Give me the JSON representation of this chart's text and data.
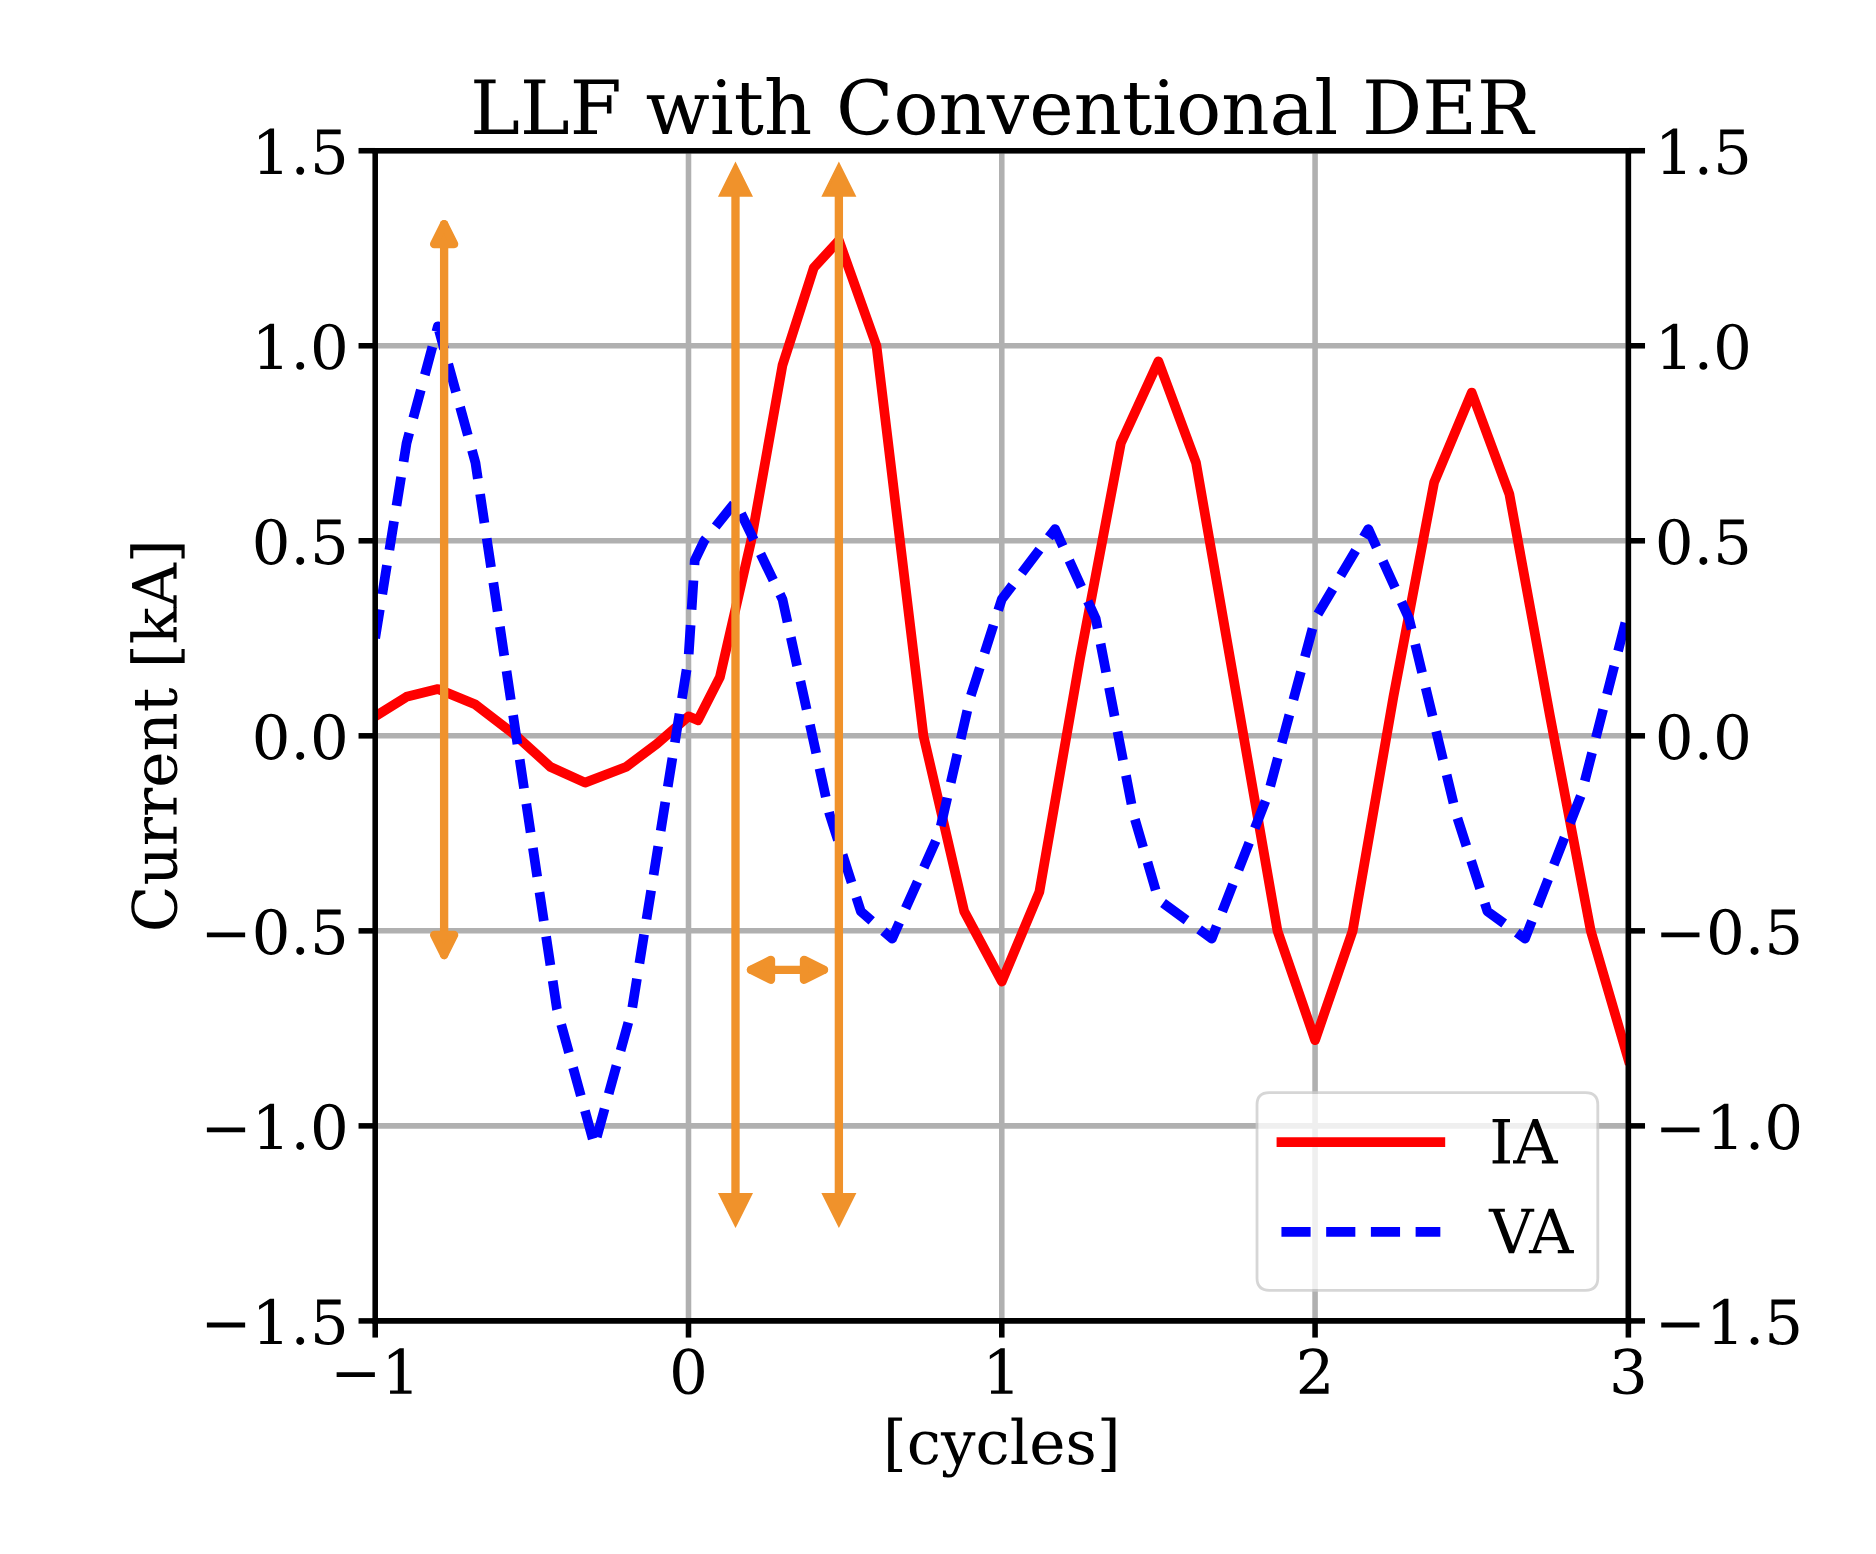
{
  "chart_data": {
    "type": "line",
    "title": "LLF with Conventional DER",
    "xlabel": "[cycles]",
    "ylabel": "Current [kA]",
    "xlim": [
      -1,
      3
    ],
    "xticks": [
      {
        "value": -1,
        "label": "−1"
      },
      0,
      1,
      2,
      3
    ],
    "ylim": [
      -1.5,
      1.5
    ],
    "yticks": [
      {
        "value": -1.5,
        "label": "−1.5"
      },
      {
        "value": -1.0,
        "label": "−1.0"
      },
      {
        "value": -0.5,
        "label": "−0.5"
      },
      {
        "value": 0.0,
        "label": "0.0"
      },
      {
        "value": 0.5,
        "label": "0.5"
      },
      {
        "value": 1.0,
        "label": "1.0"
      },
      {
        "value": 1.5,
        "label": "1.5"
      }
    ],
    "y2lim": [
      -1.5,
      1.5
    ],
    "y2ticks": [
      {
        "value": -1.5,
        "label": "−1.5"
      },
      {
        "value": -1.0,
        "label": "−1.0"
      },
      {
        "value": -0.5,
        "label": "−0.5"
      },
      {
        "value": 0.0,
        "label": "0.0"
      },
      {
        "value": 0.5,
        "label": "0.5"
      },
      {
        "value": 1.0,
        "label": "1.0"
      },
      {
        "value": 1.5,
        "label": "1.5"
      }
    ],
    "grid": true,
    "legend": "bottom right",
    "ref_lines": [
      {
        "axis": "x",
        "value": 0.15,
        "color": "#f0922b",
        "line_style": "solid"
      },
      {
        "axis": "x",
        "value": 0.48,
        "color": "#f0922b",
        "line_style": "solid"
      }
    ],
    "series": [
      {
        "name": "IA",
        "color": "#ff0000",
        "line_style": "solid",
        "x": [
          -1,
          -0.9,
          -0.8,
          -0.68,
          -0.55,
          -0.44,
          -0.33,
          -0.2,
          -0.1,
          0,
          0.03,
          0.1,
          0.2,
          0.3,
          0.4,
          0.48,
          0.6,
          0.75,
          0.88,
          1.0,
          1.12,
          1.25,
          1.38,
          1.5,
          1.62,
          1.75,
          1.88,
          2.0,
          2.12,
          2.25,
          2.38,
          2.5,
          2.62,
          2.75,
          2.88,
          3.0
        ],
        "values": [
          0.05,
          0.1,
          0.12,
          0.08,
          0.0,
          -0.08,
          -0.12,
          -0.08,
          -0.02,
          0.05,
          0.04,
          0.15,
          0.5,
          0.95,
          1.2,
          1.27,
          1.0,
          0.0,
          -0.45,
          -0.63,
          -0.4,
          0.2,
          0.75,
          0.96,
          0.7,
          0.1,
          -0.5,
          -0.78,
          -0.5,
          0.1,
          0.65,
          0.88,
          0.62,
          0.05,
          -0.5,
          -0.83
        ]
      },
      {
        "name": "VA",
        "color": "#0000ff",
        "line_style": "dashed",
        "x": [
          -1,
          -0.9,
          -0.8,
          -0.68,
          -0.55,
          -0.42,
          -0.3,
          -0.18,
          -0.06,
          0,
          0.02,
          0.05,
          0.15,
          0.3,
          0.45,
          0.55,
          0.65,
          0.8,
          0.9,
          1.0,
          1.17,
          1.3,
          1.42,
          1.5,
          1.67,
          1.85,
          2.0,
          2.17,
          2.3,
          2.45,
          2.55,
          2.67,
          2.85,
          3.0
        ],
        "values": [
          0.25,
          0.75,
          1.05,
          0.7,
          0.0,
          -0.7,
          -1.05,
          -0.7,
          -0.1,
          0.2,
          0.45,
          0.5,
          0.6,
          0.35,
          -0.2,
          -0.45,
          -0.52,
          -0.25,
          0.1,
          0.35,
          0.53,
          0.3,
          -0.2,
          -0.42,
          -0.52,
          -0.15,
          0.3,
          0.53,
          0.3,
          -0.2,
          -0.45,
          -0.52,
          -0.15,
          0.32
        ]
      }
    ]
  }
}
